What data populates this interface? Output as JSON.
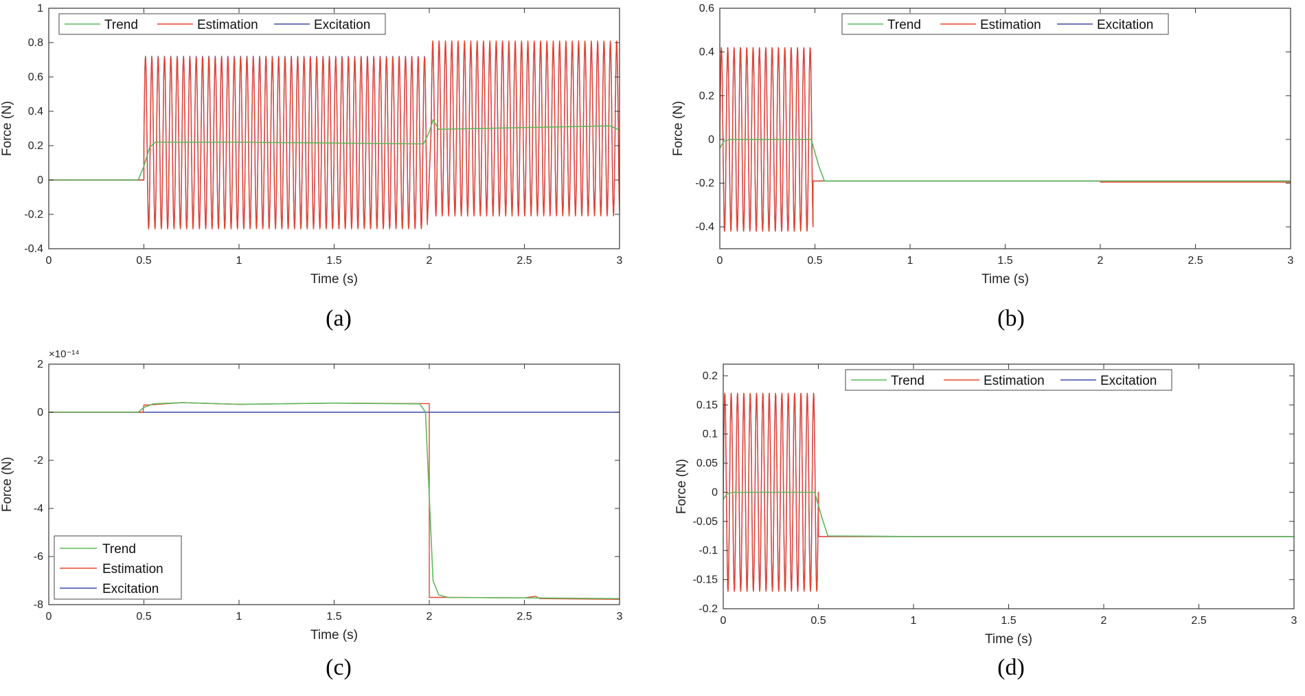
{
  "series_names": [
    "Trend",
    "Estimation",
    "Excitation"
  ],
  "colors": {
    "Trend": "#5cb85c",
    "Estimation": "#e8432e",
    "Excitation": "#3b4aa8",
    "axis": "#333333"
  },
  "captions": {
    "a": "(a)",
    "b": "(b)",
    "c": "(c)",
    "d": "(d)"
  },
  "chart_data": [
    {
      "id": "a",
      "type": "line",
      "xlabel": "Time (s)",
      "ylabel": "Force (N)",
      "xlim": [
        0,
        3
      ],
      "ylim": [
        -0.4,
        1
      ],
      "xticks": [
        0,
        0.5,
        1,
        1.5,
        2,
        2.5,
        3
      ],
      "xtick_labels": [
        "0",
        "0.5",
        "1",
        "1.5",
        "2",
        "2.5",
        "3"
      ],
      "yticks": [
        -0.4,
        -0.2,
        0,
        0.2,
        0.4,
        0.6,
        0.8,
        1
      ],
      "ytick_labels": [
        "-0.4",
        "-0.2",
        "0",
        "0.2",
        "0.4",
        "0.6",
        "0.8",
        "1"
      ],
      "exponent_label": "",
      "legend_position": "top-left",
      "legend_orientation": "horizontal",
      "series": [
        {
          "name": "Trend",
          "x": [
            0,
            0.47,
            0.5,
            0.53,
            0.56,
            1.0,
            1.5,
            1.97,
            2.0,
            2.02,
            2.05,
            2.5,
            2.95,
            3.0
          ],
          "y": [
            0,
            0,
            0.08,
            0.19,
            0.22,
            0.22,
            0.215,
            0.21,
            0.28,
            0.35,
            0.295,
            0.305,
            0.315,
            0.29
          ]
        },
        {
          "name": "Estimation",
          "segments": [
            {
              "x0": 0,
              "x1": 0.5,
              "center": 0,
              "amplitude": 0,
              "frequency": 0
            },
            {
              "x0": 0.5,
              "x1": 1.99,
              "center": 0.215,
              "amplitude": 0.5,
              "frequency": 30
            },
            {
              "x0": 2.01,
              "x1": 3,
              "center": 0.3,
              "amplitude": 0.51,
              "frequency": 30
            }
          ]
        },
        {
          "name": "Excitation",
          "segments": [
            {
              "x0": 0,
              "x1": 0.5,
              "center": 0,
              "amplitude": 0,
              "frequency": 0
            },
            {
              "x0": 0.5,
              "x1": 1.99,
              "center": 0.22,
              "amplitude": 0.5,
              "frequency": 30
            },
            {
              "x0": 2.01,
              "x1": 3,
              "center": 0.3,
              "amplitude": 0.495,
              "frequency": 30
            }
          ]
        }
      ]
    },
    {
      "id": "b",
      "type": "line",
      "xlabel": "Time (s)",
      "ylabel": "Force (N)",
      "xlim": [
        0,
        3
      ],
      "ylim": [
        -0.5,
        0.6
      ],
      "xticks": [
        0,
        0.5,
        1,
        1.5,
        2,
        2.5,
        3
      ],
      "xtick_labels": [
        "0",
        "0.5",
        "1",
        "1.5",
        "2",
        "2.5",
        "3"
      ],
      "yticks": [
        -0.4,
        -0.2,
        0,
        0.2,
        0.4,
        0.6
      ],
      "ytick_labels": [
        "-0.4",
        "-0.2",
        "0",
        "0.2",
        "0.4",
        "0.6"
      ],
      "exponent_label": "",
      "legend_position": "top-center",
      "legend_orientation": "horizontal",
      "series": [
        {
          "name": "Trend",
          "x": [
            0,
            0.02,
            0.05,
            0.45,
            0.48,
            0.52,
            0.55,
            1,
            2,
            3
          ],
          "y": [
            -0.04,
            -0.01,
            0,
            0,
            0,
            -0.12,
            -0.19,
            -0.19,
            -0.19,
            -0.19
          ]
        },
        {
          "name": "Estimation",
          "segments": [
            {
              "x0": 0,
              "x1": 0.49,
              "center": 0,
              "amplitude": 0.42,
              "frequency": 30
            },
            {
              "x0": 0.49,
              "x1": 2,
              "center": -0.19,
              "amplitude": 0,
              "frequency": 0
            },
            {
              "x0": 2,
              "x1": 3,
              "center": -0.195,
              "amplitude": 0,
              "frequency": 0
            }
          ]
        },
        {
          "name": "Excitation",
          "segments": [
            {
              "x0": 0,
              "x1": 0.49,
              "center": 0,
              "amplitude": 0.42,
              "frequency": 30
            },
            {
              "x0": 0.49,
              "x1": 3,
              "center": -0.19,
              "amplitude": 0,
              "frequency": 0
            }
          ]
        }
      ]
    },
    {
      "id": "c",
      "type": "line",
      "xlabel": "Time (s)",
      "ylabel": "Force (N)",
      "xlim": [
        0,
        3
      ],
      "ylim": [
        -8,
        2
      ],
      "xticks": [
        0,
        0.5,
        1,
        1.5,
        2,
        2.5,
        3
      ],
      "xtick_labels": [
        "0",
        "0.5",
        "1",
        "1.5",
        "2",
        "2.5",
        "3"
      ],
      "yticks": [
        -8,
        -6,
        -4,
        -2,
        0,
        2
      ],
      "ytick_labels": [
        "-8",
        "-6",
        "-4",
        "-2",
        "0",
        "2"
      ],
      "exponent_label": "×10⁻¹⁴",
      "legend_position": "bottom-left",
      "legend_orientation": "vertical",
      "series": [
        {
          "name": "Trend",
          "x": [
            0,
            0.47,
            0.5,
            0.55,
            0.7,
            1.0,
            1.5,
            1.95,
            1.98,
            2.0,
            2.02,
            2.05,
            2.1,
            2.5,
            3
          ],
          "y": [
            0,
            0,
            0.2,
            0.35,
            0.4,
            0.33,
            0.38,
            0.35,
            0,
            -3.5,
            -7,
            -7.6,
            -7.7,
            -7.72,
            -7.75
          ]
        },
        {
          "name": "Estimation",
          "x": [
            0,
            0.495,
            0.5,
            0.52,
            0.7,
            1.0,
            1.5,
            1.99,
            2.0,
            2.0,
            2.1,
            2.5,
            2.56,
            2.58,
            3
          ],
          "y": [
            0,
            0,
            0.3,
            0.3,
            0.4,
            0.33,
            0.38,
            0.36,
            0.36,
            -7.7,
            -7.7,
            -7.72,
            -7.65,
            -7.75,
            -7.78
          ]
        },
        {
          "name": "Excitation",
          "x": [
            0,
            3
          ],
          "y": [
            0,
            0
          ]
        }
      ]
    },
    {
      "id": "d",
      "type": "line",
      "xlabel": "Time (s)",
      "ylabel": "Force (N)",
      "xlim": [
        0,
        3
      ],
      "ylim": [
        -0.2,
        0.22
      ],
      "xticks": [
        0,
        0.5,
        1,
        1.5,
        2,
        2.5,
        3
      ],
      "xtick_labels": [
        "0",
        "0.5",
        "1",
        "1.5",
        "2",
        "2.5",
        "3"
      ],
      "yticks": [
        -0.2,
        -0.15,
        -0.1,
        -0.05,
        0,
        0.05,
        0.1,
        0.15,
        0.2
      ],
      "ytick_labels": [
        "-0.2",
        "-0.15",
        "-0.1",
        "-0.05",
        "0",
        "0.05",
        "0.1",
        "0.15",
        "0.2"
      ],
      "exponent_label": "",
      "legend_position": "top-center",
      "legend_orientation": "horizontal",
      "series": [
        {
          "name": "Trend",
          "x": [
            0,
            0.02,
            0.05,
            0.45,
            0.48,
            0.52,
            0.55,
            1,
            2,
            3
          ],
          "y": [
            -0.012,
            -0.003,
            0,
            0,
            0,
            -0.045,
            -0.075,
            -0.076,
            -0.076,
            -0.076
          ]
        },
        {
          "name": "Estimation",
          "segments": [
            {
              "x0": 0,
              "x1": 0.5,
              "center": 0,
              "amplitude": 0.17,
              "frequency": 30
            },
            {
              "x0": 0.5,
              "x1": 3,
              "center": -0.076,
              "amplitude": 0,
              "frequency": 0
            }
          ]
        },
        {
          "name": "Excitation",
          "segments": [
            {
              "x0": 0,
              "x1": 0.5,
              "center": 0,
              "amplitude": 0.17,
              "frequency": 30
            },
            {
              "x0": 0.5,
              "x1": 3,
              "center": -0.076,
              "amplitude": 0,
              "frequency": 0
            }
          ]
        }
      ]
    }
  ]
}
